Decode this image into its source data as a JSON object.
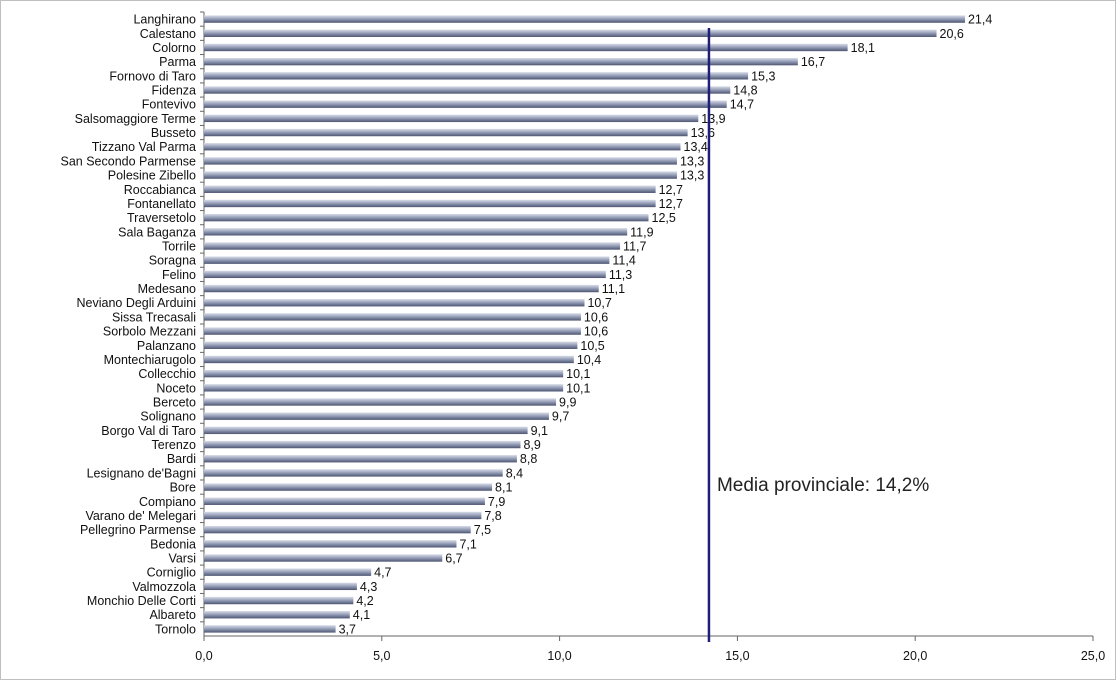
{
  "chart_data": {
    "type": "bar",
    "orientation": "horizontal",
    "categories": [
      "Langhirano",
      "Calestano",
      "Colorno",
      "Parma",
      "Fornovo di Taro",
      "Fidenza",
      "Fontevivo",
      "Salsomaggiore Terme",
      "Busseto",
      "Tizzano Val Parma",
      "San Secondo Parmense",
      "Polesine Zibello",
      "Roccabianca",
      "Fontanellato",
      "Traversetolo",
      "Sala Baganza",
      "Torrile",
      "Soragna",
      "Felino",
      "Medesano",
      "Neviano Degli Arduini",
      "Sissa Trecasali",
      "Sorbolo Mezzani",
      "Palanzano",
      "Montechiarugolo",
      "Collecchio",
      "Noceto",
      "Berceto",
      "Solignano",
      "Borgo Val di Taro",
      "Terenzo",
      "Bardi",
      "Lesignano de'Bagni",
      "Bore",
      "Compiano",
      "Varano de' Melegari",
      "Pellegrino Parmense",
      "Bedonia",
      "Varsi",
      "Corniglio",
      "Valmozzola",
      "Monchio Delle Corti",
      "Albareto",
      "Tornolo"
    ],
    "values": [
      21.4,
      20.6,
      18.1,
      16.7,
      15.3,
      14.8,
      14.7,
      13.9,
      13.6,
      13.4,
      13.3,
      13.3,
      12.7,
      12.7,
      12.5,
      11.9,
      11.7,
      11.4,
      11.3,
      11.1,
      10.7,
      10.6,
      10.6,
      10.5,
      10.4,
      10.1,
      10.1,
      9.9,
      9.7,
      9.1,
      8.9,
      8.8,
      8.4,
      8.1,
      7.9,
      7.8,
      7.5,
      7.1,
      6.7,
      4.7,
      4.3,
      4.2,
      4.1,
      3.7
    ],
    "value_labels": [
      "21,4",
      "20,6",
      "18,1",
      "16,7",
      "15,3",
      "14,8",
      "14,7",
      "13,9",
      "13,6",
      "13,4",
      "13,3",
      "13,3",
      "12,7",
      "12,7",
      "12,5",
      "11,9",
      "11,7",
      "11,4",
      "11,3",
      "11,1",
      "10,7",
      "10,6",
      "10,6",
      "10,5",
      "10,4",
      "10,1",
      "10,1",
      "9,9",
      "9,7",
      "9,1",
      "8,9",
      "8,8",
      "8,4",
      "8,1",
      "7,9",
      "7,8",
      "7,5",
      "7,1",
      "6,7",
      "4,7",
      "4,3",
      "4,2",
      "4,1",
      "3,7"
    ],
    "xlim": [
      0,
      25
    ],
    "xticks": [
      0,
      5,
      10,
      15,
      20,
      25
    ],
    "xtick_labels": [
      "0,0",
      "5,0",
      "10,0",
      "15,0",
      "20,0",
      "25,0"
    ],
    "reference_line": {
      "value": 14.2,
      "label": "Media provinciale: 14,2%",
      "color": "#1f1f7a"
    },
    "bar_color": "#7f8aa8",
    "grid": false,
    "title": "",
    "xlabel": "",
    "ylabel": ""
  }
}
